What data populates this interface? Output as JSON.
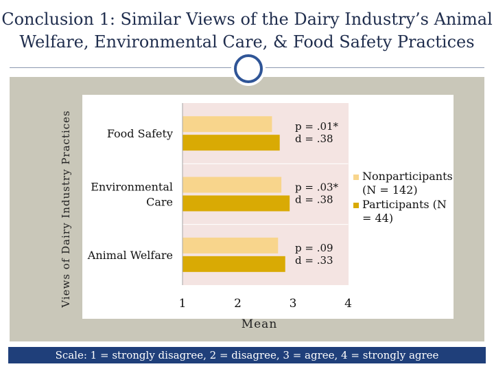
{
  "slide": {
    "title_line1": "Conclusion 1: Similar Views of the Dairy Industry’s Animal",
    "title_line2": "Welfare, Environmental Care, & Food Safety Practices",
    "footer": "Scale: 1 = strongly disagree, 2 = disagree, 3 = agree, 4 = strongly agree"
  },
  "colors": {
    "panel": "#c9c7b9",
    "plot_bg": "#f4e4e2",
    "nonparticipants": "#f8d58c",
    "participants": "#d9aa04",
    "footer": "#1f3f7a",
    "accent_circle": "#2f5597"
  },
  "chart_data": {
    "type": "bar",
    "orientation": "horizontal",
    "categories": [
      "Food Safety",
      "Environmental Care",
      "Animal Welfare"
    ],
    "category_lines": [
      [
        "Food Safety"
      ],
      [
        "Environmental",
        "Care"
      ],
      [
        "Animal Welfare"
      ]
    ],
    "series": [
      {
        "name_lines": [
          "Nonparticipants",
          "(N = 142)"
        ],
        "values": [
          2.62,
          2.79,
          2.73
        ]
      },
      {
        "name_lines": [
          "Participants (N",
          "= 44)"
        ],
        "values": [
          2.76,
          2.94,
          2.86
        ]
      }
    ],
    "annotations": [
      {
        "p": "p = .01*",
        "d": "d = .38"
      },
      {
        "p": "p = .03*",
        "d": "d = .38"
      },
      {
        "p": "p = .09",
        "d": "d = .33"
      }
    ],
    "xticks": [
      "1",
      "2",
      "3",
      "4"
    ],
    "xlim": [
      1,
      4
    ],
    "xlabel": "Mean",
    "ylabel": "Views of Dairy Industry Practices",
    "legend": "right"
  }
}
